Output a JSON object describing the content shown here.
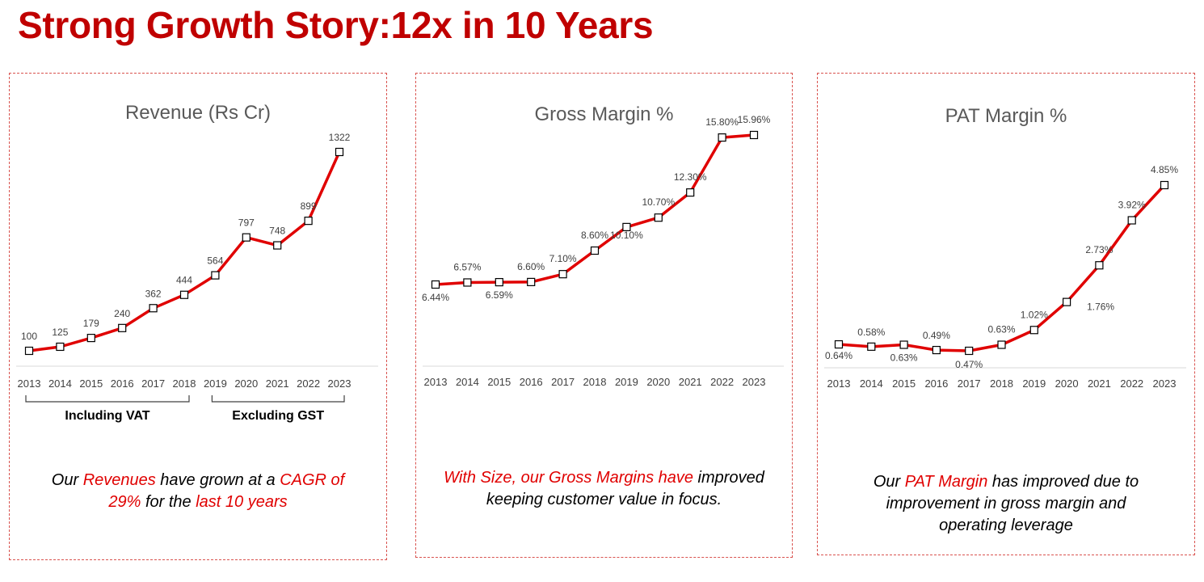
{
  "page_title": "Strong Growth Story:12x in 10 Years",
  "colors": {
    "title": "#c00000",
    "line": "#e00000",
    "accent_text": "#e00000",
    "border": "#d9534f"
  },
  "chart_data": [
    {
      "type": "line",
      "title": "Revenue (Rs Cr)",
      "categories": [
        "2013",
        "2014",
        "2015",
        "2016",
        "2017",
        "2018",
        "2019",
        "2020",
        "2021",
        "2022",
        "2023"
      ],
      "values": [
        100,
        125,
        179,
        240,
        362,
        444,
        564,
        797,
        748,
        899,
        1322
      ],
      "data_labels": [
        "100",
        "125",
        "179",
        "240",
        "362",
        "444",
        "564",
        "797",
        "748",
        "899",
        "1322"
      ],
      "ylim": [
        0,
        1400
      ],
      "grid": false,
      "segments": [
        {
          "label": "Including VAT",
          "from": "2013",
          "to": "2018"
        },
        {
          "label": "Excluding GST",
          "from": "2019",
          "to": "2023"
        }
      ]
    },
    {
      "type": "line",
      "title": "Gross Margin %",
      "categories": [
        "2013",
        "2014",
        "2015",
        "2016",
        "2017",
        "2018",
        "2019",
        "2020",
        "2021",
        "2022",
        "2023"
      ],
      "values": [
        6.44,
        6.57,
        6.59,
        6.6,
        7.1,
        8.6,
        10.1,
        10.7,
        12.3,
        15.8,
        15.96
      ],
      "data_labels": [
        "6.44%",
        "6.57%",
        "6.59%",
        "6.60%",
        "7.10%",
        "8.60%",
        "10.10%",
        "10.70%",
        "12.30%",
        "15.80%",
        "15.96%"
      ],
      "ylim": [
        0,
        17
      ],
      "grid": false
    },
    {
      "type": "line",
      "title": "PAT Margin %",
      "categories": [
        "2013",
        "2014",
        "2015",
        "2016",
        "2017",
        "2018",
        "2019",
        "2020",
        "2021",
        "2022",
        "2023"
      ],
      "values": [
        0.64,
        0.58,
        0.63,
        0.49,
        0.47,
        0.63,
        1.02,
        1.76,
        2.73,
        3.92,
        4.85
      ],
      "data_labels": [
        "0.64%",
        "0.58%",
        "0.63%",
        "0.49%",
        "0.47%",
        "0.63%",
        "1.02%",
        "1.76%",
        "2.73%",
        "3.92%",
        "4.85%"
      ],
      "ylim": [
        -0.2,
        5.4
      ],
      "grid": false
    }
  ],
  "captions": {
    "revenue": {
      "l1_a": "Our ",
      "l1_b": "Revenues",
      "l1_c": " have grown at a ",
      "l1_d": " CAGR of",
      "l2_a": "29%",
      "l2_b": " for the ",
      "l2_c": "last 10 years"
    },
    "gross": {
      "l1_a": "With Size, our Gross Margins have",
      "l1_b": " improved",
      "l2": "keeping customer value in focus."
    },
    "pat": {
      "l1_a": "Our ",
      "l1_b": "PAT Margin",
      "l1_c": " has improved due to",
      "l2": "improvement in gross margin and",
      "l3": "operating leverage"
    }
  }
}
